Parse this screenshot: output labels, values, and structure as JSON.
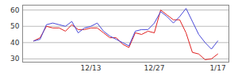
{
  "chart_data": {
    "type": "line",
    "categories": [
      null,
      null,
      null,
      null,
      null,
      null,
      null,
      null,
      null,
      "12/13",
      null,
      null,
      null,
      null,
      null,
      null,
      null,
      null,
      null,
      "12/27",
      null,
      null,
      null,
      null,
      null,
      null,
      null,
      null,
      null,
      "1/17"
    ],
    "series": [
      {
        "color": "#e02020",
        "values": [
          41,
          43,
          50,
          49,
          49,
          47,
          51,
          48,
          48,
          49,
          49,
          46,
          43,
          43,
          39,
          37,
          46,
          45,
          47,
          46,
          60,
          57,
          54,
          54,
          46,
          34,
          33,
          29.5,
          30,
          33
        ]
      },
      {
        "color": "#4848d8",
        "values": [
          41,
          42,
          51,
          52,
          51,
          50,
          53,
          46,
          49,
          50,
          52,
          47,
          44,
          42,
          40,
          38,
          47,
          48,
          48,
          52,
          59,
          56,
          52,
          56,
          61,
          53,
          45,
          40,
          36,
          41
        ]
      }
    ],
    "ylim": [
      28,
      63
    ],
    "yticks": [
      30,
      40,
      50,
      60
    ],
    "grid": true
  }
}
